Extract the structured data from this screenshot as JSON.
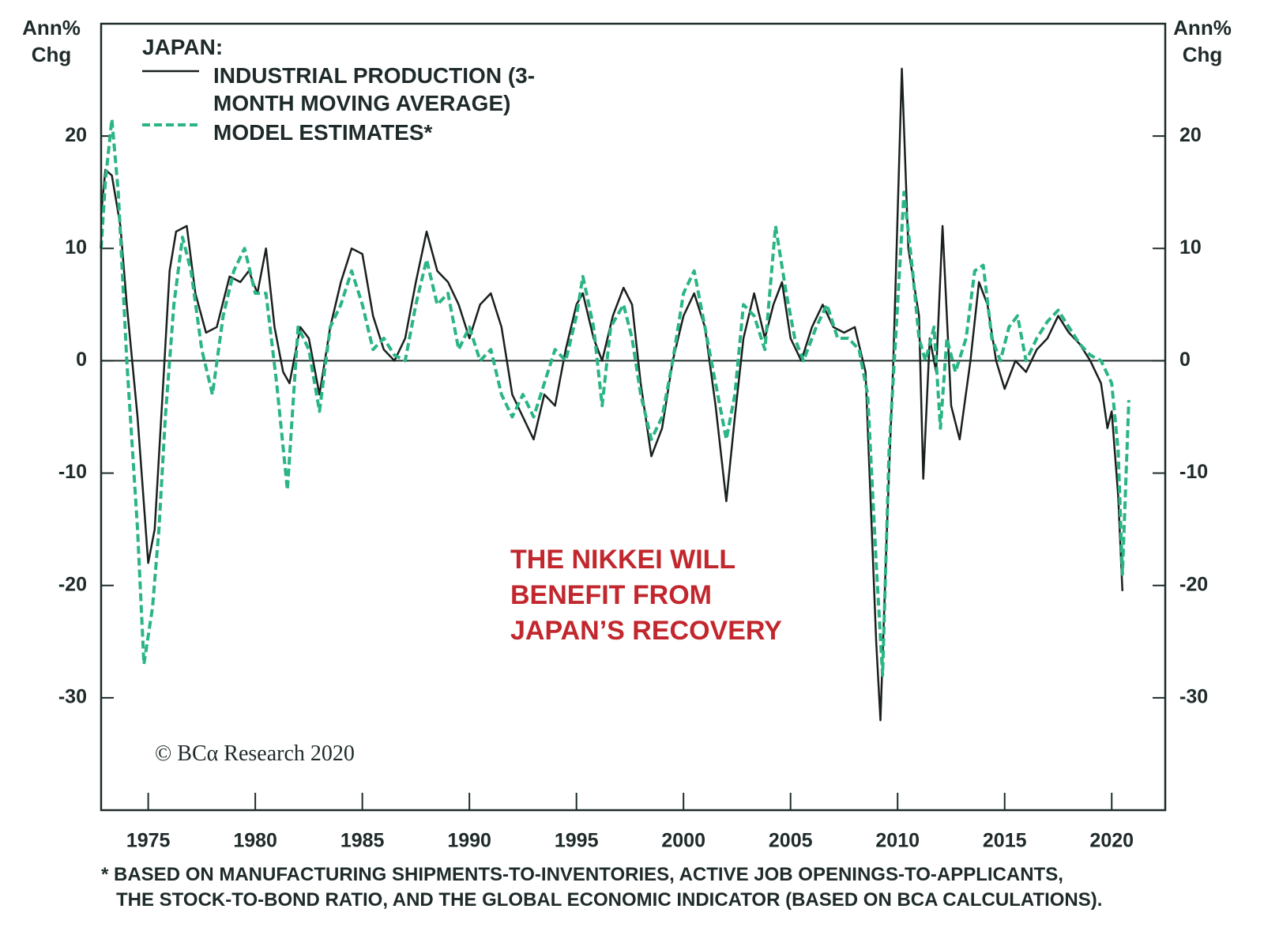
{
  "chart_data": {
    "type": "line",
    "y_label": "Ann% Chg",
    "legend_title": "JAPAN:",
    "annotation": "THE NIKKEI WILL BENEFIT FROM JAPAN’S RECOVERY",
    "credit": "© BCα Research 2020",
    "footnote": [
      "* BASED ON MANUFACTURING SHIPMENTS-TO-INVENTORIES, ACTIVE JOB OPENINGS-TO-APPLICANTS,",
      "THE STOCK-TO-BOND RATIO, AND THE GLOBAL ECONOMIC INDICATOR (BASED ON BCA CALCULATIONS)."
    ],
    "xlim": [
      1972.8,
      2022.5
    ],
    "xticks": [
      1975,
      1980,
      1985,
      1990,
      1995,
      2000,
      2005,
      2010,
      2015,
      2020
    ],
    "ylim": [
      -40,
      30
    ],
    "yticks": [
      -30,
      -20,
      -10,
      0,
      10,
      20
    ],
    "series": [
      {
        "name": "INDUSTRIAL PRODUCTION (3-MONTH MOVING AVERAGE)",
        "color": "#1a1f1f",
        "dash": false,
        "x": [
          1972.8,
          1973.0,
          1973.3,
          1973.7,
          1974.0,
          1974.5,
          1975.0,
          1975.3,
          1975.7,
          1976.0,
          1976.3,
          1976.8,
          1977.2,
          1977.7,
          1978.2,
          1978.8,
          1979.3,
          1979.7,
          1980.1,
          1980.5,
          1980.9,
          1981.3,
          1981.6,
          1982.1,
          1982.5,
          1983.0,
          1983.5,
          1984.0,
          1984.5,
          1985.0,
          1985.5,
          1986.0,
          1986.5,
          1987.0,
          1987.5,
          1988.0,
          1988.5,
          1989.0,
          1989.5,
          1990.0,
          1990.5,
          1991.0,
          1991.5,
          1992.0,
          1992.5,
          1993.0,
          1993.5,
          1994.0,
          1994.5,
          1995.0,
          1995.3,
          1995.8,
          1996.2,
          1996.7,
          1997.2,
          1997.6,
          1998.0,
          1998.5,
          1999.0,
          1999.5,
          2000.0,
          2000.5,
          2001.0,
          2001.5,
          2002.0,
          2002.4,
          2002.8,
          2003.3,
          2003.8,
          2004.2,
          2004.6,
          2005.0,
          2005.5,
          2006.0,
          2006.5,
          2007.0,
          2007.5,
          2008.0,
          2008.5,
          2009.0,
          2009.2,
          2009.5,
          2009.8,
          2010.2,
          2010.5,
          2011.0,
          2011.2,
          2011.5,
          2011.8,
          2012.1,
          2012.5,
          2012.9,
          2013.4,
          2013.8,
          2014.2,
          2014.6,
          2015.0,
          2015.5,
          2016.0,
          2016.5,
          2017.0,
          2017.5,
          2018.0,
          2018.5,
          2019.0,
          2019.5,
          2019.8,
          2020.0,
          2020.3,
          2020.5
        ],
        "values": [
          13,
          17,
          16.5,
          12,
          5,
          -5,
          -18,
          -15,
          -2,
          8,
          11.5,
          12,
          6,
          2.5,
          3,
          7.5,
          7,
          8,
          6,
          10,
          3,
          -1,
          -2,
          3,
          2,
          -3,
          3,
          7,
          10,
          9.5,
          4,
          1,
          0,
          2,
          7,
          11.5,
          8,
          7,
          5,
          2,
          5,
          6,
          3,
          -3,
          -5,
          -7,
          -3,
          -4,
          1,
          5,
          6,
          2,
          0,
          4,
          6.5,
          5,
          -2,
          -8.5,
          -6,
          0,
          4,
          6,
          3,
          -4,
          -12.5,
          -5,
          2,
          6,
          2,
          5,
          7,
          2,
          0,
          3,
          5,
          3,
          2.5,
          3,
          -1,
          -25,
          -32,
          -15,
          0,
          26,
          10,
          4,
          -10.5,
          2,
          -1,
          12,
          -4,
          -7,
          0,
          7,
          5,
          0,
          -2.5,
          0,
          -1,
          1,
          2,
          4,
          2.5,
          1.5,
          0,
          -2,
          -6,
          -4.5,
          -12,
          -20.5
        ]
      },
      {
        "name": "MODEL ESTIMATES*",
        "color": "#2bb583",
        "dash": true,
        "x": [
          1972.8,
          1973.0,
          1973.3,
          1973.6,
          1974.0,
          1974.5,
          1974.8,
          1975.2,
          1975.5,
          1975.8,
          1976.2,
          1976.6,
          1977.0,
          1977.5,
          1978.0,
          1978.5,
          1979.0,
          1979.5,
          1980.0,
          1980.5,
          1981.0,
          1981.5,
          1982.0,
          1982.5,
          1983.0,
          1983.5,
          1984.0,
          1984.5,
          1985.0,
          1985.5,
          1986.0,
          1986.5,
          1987.0,
          1987.5,
          1988.0,
          1988.5,
          1989.0,
          1989.5,
          1990.0,
          1990.5,
          1991.0,
          1991.5,
          1992.0,
          1992.5,
          1993.0,
          1993.5,
          1994.0,
          1994.5,
          1995.0,
          1995.3,
          1995.8,
          1996.2,
          1996.6,
          1997.2,
          1997.6,
          1998.0,
          1998.5,
          1999.0,
          1999.5,
          2000.0,
          2000.5,
          2001.0,
          2001.5,
          2002.0,
          2002.4,
          2002.8,
          2003.3,
          2003.8,
          2004.3,
          2004.8,
          2005.2,
          2005.6,
          2006.2,
          2006.7,
          2007.2,
          2007.7,
          2008.2,
          2008.6,
          2009.0,
          2009.3,
          2009.6,
          2010.0,
          2010.3,
          2010.7,
          2011.0,
          2011.3,
          2011.7,
          2012.0,
          2012.3,
          2012.7,
          2013.2,
          2013.6,
          2014.0,
          2014.4,
          2014.8,
          2015.2,
          2015.6,
          2016.0,
          2016.5,
          2017.0,
          2017.5,
          2018.0,
          2018.5,
          2019.0,
          2019.5,
          2020.0,
          2020.3,
          2020.5,
          2020.8
        ],
        "values": [
          10,
          16,
          21.5,
          15,
          0,
          -15,
          -27,
          -22,
          -15,
          -5,
          5,
          11,
          8,
          1,
          -3,
          4,
          8,
          10,
          6,
          6,
          -2,
          -11.5,
          3,
          1,
          -4.5,
          3,
          5,
          8,
          5,
          1,
          2,
          0.5,
          0,
          5,
          9,
          5,
          6,
          1,
          3,
          0,
          1,
          -3,
          -5,
          -3,
          -5,
          -2,
          1,
          0,
          4,
          7.5,
          3,
          -4,
          3,
          5,
          2,
          -3,
          -7,
          -5,
          0,
          6,
          8,
          3,
          -2,
          -7,
          -3,
          5,
          4,
          1,
          12,
          6,
          2,
          0,
          3,
          5,
          2,
          2,
          1,
          -3,
          -18,
          -28,
          -8,
          5,
          15,
          8,
          2,
          0,
          3,
          -6,
          2,
          -1,
          2,
          8,
          8.5,
          2,
          0,
          3,
          4,
          0,
          2,
          3.5,
          4.5,
          3,
          1.5,
          0.5,
          0,
          -2,
          -8,
          -19,
          -3.5
        ]
      }
    ]
  }
}
